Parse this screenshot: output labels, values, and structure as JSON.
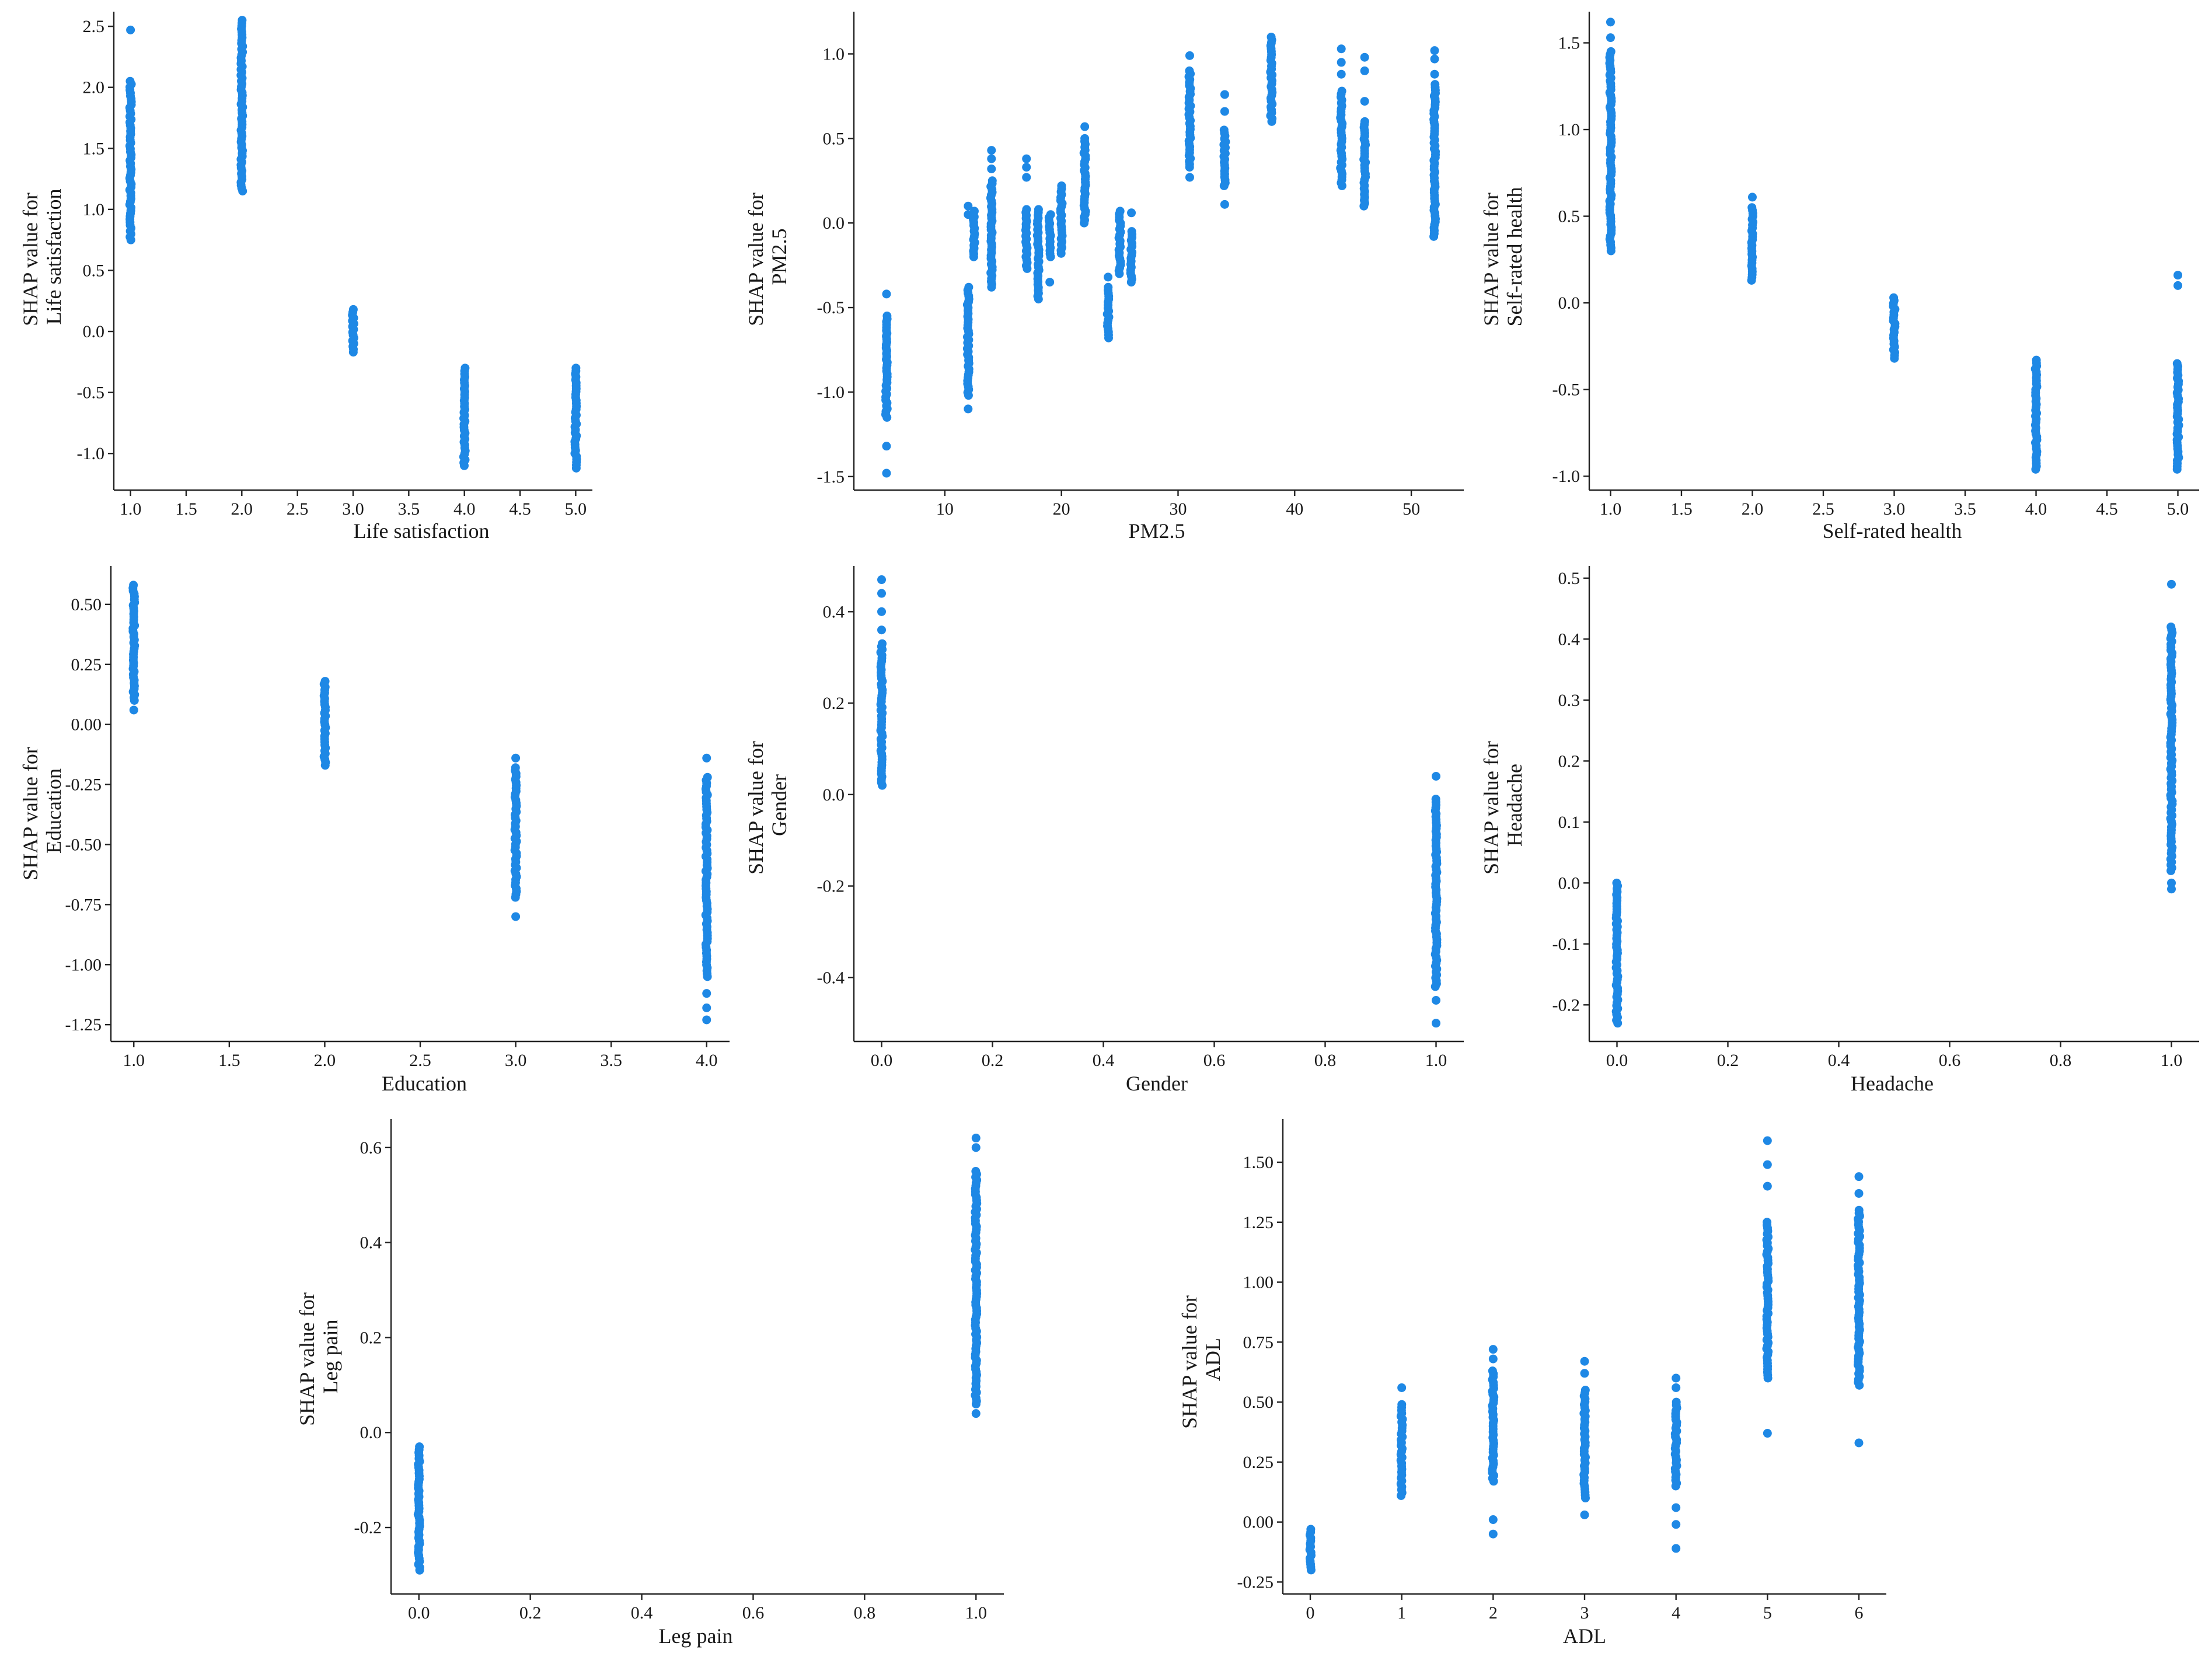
{
  "point_color": "#1e88e5",
  "chart_data": [
    {
      "type": "scatter",
      "xlabel": "Life satisfaction",
      "ylabel_line1": "SHAP value for",
      "ylabel_line2": "Life satisfaction",
      "xlim": [
        0.85,
        5.15
      ],
      "ylim": [
        -1.3,
        2.62
      ],
      "xticks": [
        1.0,
        1.5,
        2.0,
        2.5,
        3.0,
        3.5,
        4.0,
        4.5,
        5.0
      ],
      "xtick_labels": [
        "1.0",
        "1.5",
        "2.0",
        "2.5",
        "3.0",
        "3.5",
        "4.0",
        "4.5",
        "5.0"
      ],
      "yticks": [
        -1.0,
        -0.5,
        0.0,
        0.5,
        1.0,
        1.5,
        2.0,
        2.5
      ],
      "ytick_labels": [
        "-1.0",
        "-0.5",
        "0.0",
        "0.5",
        "1.0",
        "1.5",
        "2.0",
        "2.5"
      ],
      "clusters": [
        {
          "x": 1,
          "min": 0.75,
          "max": 2.05,
          "outliers": [
            2.47
          ]
        },
        {
          "x": 2,
          "min": 1.15,
          "max": 2.55,
          "outliers": []
        },
        {
          "x": 3,
          "min": -0.17,
          "max": 0.18,
          "outliers": []
        },
        {
          "x": 4,
          "min": -1.1,
          "max": -0.3,
          "outliers": []
        },
        {
          "x": 5,
          "min": -1.12,
          "max": -0.3,
          "outliers": []
        }
      ]
    },
    {
      "type": "scatter",
      "xlabel": "PM2.5",
      "ylabel_line1": "SHAP value for",
      "ylabel_line2": "PM2.5",
      "xlim": [
        2.2,
        54.5
      ],
      "ylim": [
        -1.58,
        1.25
      ],
      "xticks": [
        10,
        20,
        30,
        40,
        50
      ],
      "xtick_labels": [
        "10",
        "20",
        "30",
        "40",
        "50"
      ],
      "yticks": [
        -1.5,
        -1.0,
        -0.5,
        0.0,
        0.5,
        1.0
      ],
      "ytick_labels": [
        "-1.5",
        "-1.0",
        "-0.5",
        "0.0",
        "0.5",
        "1.0"
      ],
      "clusters": [
        {
          "x": 5,
          "min": -1.15,
          "max": -0.55,
          "outliers": [
            -1.48,
            -1.32,
            -0.42
          ]
        },
        {
          "x": 12,
          "min": -1.02,
          "max": -0.38,
          "outliers": [
            -1.1,
            0.1,
            0.05
          ]
        },
        {
          "x": 12.5,
          "min": -0.2,
          "max": 0.07,
          "outliers": []
        },
        {
          "x": 14,
          "min": -0.38,
          "max": 0.25,
          "outliers": [
            0.32,
            0.38,
            0.43
          ]
        },
        {
          "x": 17,
          "min": -0.27,
          "max": 0.08,
          "outliers": [
            0.27,
            0.33,
            0.38
          ]
        },
        {
          "x": 18,
          "min": -0.45,
          "max": 0.08,
          "outliers": []
        },
        {
          "x": 19,
          "min": -0.2,
          "max": 0.05,
          "outliers": [
            -0.35
          ]
        },
        {
          "x": 20,
          "min": -0.18,
          "max": 0.22,
          "outliers": []
        },
        {
          "x": 22,
          "min": 0.0,
          "max": 0.5,
          "outliers": [
            0.57
          ]
        },
        {
          "x": 24,
          "min": -0.68,
          "max": -0.38,
          "outliers": [
            -0.32
          ]
        },
        {
          "x": 25,
          "min": -0.3,
          "max": 0.07,
          "outliers": []
        },
        {
          "x": 26,
          "min": -0.35,
          "max": -0.05,
          "outliers": [
            0.06
          ]
        },
        {
          "x": 31,
          "min": 0.33,
          "max": 0.9,
          "outliers": [
            0.27,
            0.99
          ]
        },
        {
          "x": 34,
          "min": 0.22,
          "max": 0.55,
          "outliers": [
            0.11,
            0.66,
            0.76
          ]
        },
        {
          "x": 38,
          "min": 0.6,
          "max": 1.1,
          "outliers": []
        },
        {
          "x": 44,
          "min": 0.22,
          "max": 0.78,
          "outliers": [
            0.88,
            0.95,
            1.03
          ]
        },
        {
          "x": 46,
          "min": 0.1,
          "max": 0.6,
          "outliers": [
            0.72,
            0.9,
            0.98
          ]
        },
        {
          "x": 52,
          "min": -0.08,
          "max": 0.82,
          "outliers": [
            0.88,
            0.97,
            1.02
          ]
        }
      ]
    },
    {
      "type": "scatter",
      "xlabel": "Self-rated health",
      "ylabel_line1": "SHAP value for",
      "ylabel_line2": "Self-rated health",
      "xlim": [
        0.85,
        5.15
      ],
      "ylim": [
        -1.08,
        1.68
      ],
      "xticks": [
        1.0,
        1.5,
        2.0,
        2.5,
        3.0,
        3.5,
        4.0,
        4.5,
        5.0
      ],
      "xtick_labels": [
        "1.0",
        "1.5",
        "2.0",
        "2.5",
        "3.0",
        "3.5",
        "4.0",
        "4.5",
        "5.0"
      ],
      "yticks": [
        -1.0,
        -0.5,
        0.0,
        0.5,
        1.0,
        1.5
      ],
      "ytick_labels": [
        "-1.0",
        "-0.5",
        "0.0",
        "0.5",
        "1.0",
        "1.5"
      ],
      "clusters": [
        {
          "x": 1,
          "min": 0.3,
          "max": 1.45,
          "outliers": [
            1.53,
            1.62
          ]
        },
        {
          "x": 2,
          "min": 0.13,
          "max": 0.55,
          "outliers": [
            0.61
          ]
        },
        {
          "x": 3,
          "min": -0.32,
          "max": 0.03,
          "outliers": []
        },
        {
          "x": 4,
          "min": -0.96,
          "max": -0.33,
          "outliers": []
        },
        {
          "x": 5,
          "min": -0.96,
          "max": -0.35,
          "outliers": [
            0.1,
            0.16
          ]
        }
      ]
    },
    {
      "type": "scatter",
      "xlabel": "Education",
      "ylabel_line1": "SHAP value for",
      "ylabel_line2": "Education",
      "xlim": [
        0.88,
        4.12
      ],
      "ylim": [
        -1.32,
        0.66
      ],
      "xticks": [
        1.0,
        1.5,
        2.0,
        2.5,
        3.0,
        3.5,
        4.0
      ],
      "xtick_labels": [
        "1.0",
        "1.5",
        "2.0",
        "2.5",
        "3.0",
        "3.5",
        "4.0"
      ],
      "yticks": [
        -1.25,
        -1.0,
        -0.75,
        -0.5,
        -0.25,
        0.0,
        0.25,
        0.5
      ],
      "ytick_labels": [
        "-1.25",
        "-1.00",
        "-0.75",
        "-0.50",
        "-0.25",
        "0.00",
        "0.25",
        "0.50"
      ],
      "clusters": [
        {
          "x": 1,
          "min": 0.1,
          "max": 0.58,
          "outliers": [
            0.06
          ]
        },
        {
          "x": 2,
          "min": -0.17,
          "max": 0.18,
          "outliers": []
        },
        {
          "x": 3,
          "min": -0.72,
          "max": -0.18,
          "outliers": [
            -0.14,
            -0.8
          ]
        },
        {
          "x": 4,
          "min": -1.05,
          "max": -0.22,
          "outliers": [
            -0.14,
            -1.12,
            -1.18,
            -1.23
          ]
        }
      ]
    },
    {
      "type": "scatter",
      "xlabel": "Gender",
      "ylabel_line1": "SHAP value for",
      "ylabel_line2": "Gender",
      "xlim": [
        -0.05,
        1.05
      ],
      "ylim": [
        -0.54,
        0.5
      ],
      "xticks": [
        0.0,
        0.2,
        0.4,
        0.6,
        0.8,
        1.0
      ],
      "xtick_labels": [
        "0.0",
        "0.2",
        "0.4",
        "0.6",
        "0.8",
        "1.0"
      ],
      "yticks": [
        -0.4,
        -0.2,
        0.0,
        0.2,
        0.4
      ],
      "ytick_labels": [
        "-0.4",
        "-0.2",
        "0.0",
        "0.2",
        "0.4"
      ],
      "clusters": [
        {
          "x": 0,
          "min": 0.02,
          "max": 0.33,
          "outliers": [
            0.36,
            0.4,
            0.44,
            0.47
          ]
        },
        {
          "x": 1,
          "min": -0.42,
          "max": -0.01,
          "outliers": [
            0.04,
            -0.45,
            -0.5
          ]
        }
      ]
    },
    {
      "type": "scatter",
      "xlabel": "Headache",
      "ylabel_line1": "SHAP value for",
      "ylabel_line2": "Headache",
      "xlim": [
        -0.05,
        1.05
      ],
      "ylim": [
        -0.26,
        0.52
      ],
      "xticks": [
        0.0,
        0.2,
        0.4,
        0.6,
        0.8,
        1.0
      ],
      "xtick_labels": [
        "0.0",
        "0.2",
        "0.4",
        "0.6",
        "0.8",
        "1.0"
      ],
      "yticks": [
        -0.2,
        -0.1,
        0.0,
        0.1,
        0.2,
        0.3,
        0.4,
        0.5
      ],
      "ytick_labels": [
        "-0.2",
        "-0.1",
        "0.0",
        "0.1",
        "0.2",
        "0.3",
        "0.4",
        "0.5"
      ],
      "clusters": [
        {
          "x": 0,
          "min": -0.23,
          "max": 0.0,
          "outliers": []
        },
        {
          "x": 1,
          "min": 0.02,
          "max": 0.42,
          "outliers": [
            -0.01,
            0.0,
            0.49
          ]
        }
      ]
    },
    {
      "type": "scatter",
      "xlabel": "Leg pain",
      "ylabel_line1": "SHAP value for",
      "ylabel_line2": "Leg pain",
      "xlim": [
        -0.05,
        1.05
      ],
      "ylim": [
        -0.34,
        0.66
      ],
      "xticks": [
        0.0,
        0.2,
        0.4,
        0.6,
        0.8,
        1.0
      ],
      "xtick_labels": [
        "0.0",
        "0.2",
        "0.4",
        "0.6",
        "0.8",
        "1.0"
      ],
      "yticks": [
        -0.2,
        0.0,
        0.2,
        0.4,
        0.6
      ],
      "ytick_labels": [
        "-0.2",
        "0.0",
        "0.2",
        "0.4",
        "0.6"
      ],
      "clusters": [
        {
          "x": 0,
          "min": -0.29,
          "max": -0.03,
          "outliers": []
        },
        {
          "x": 1,
          "min": 0.06,
          "max": 0.55,
          "outliers": [
            0.04,
            0.6,
            0.62
          ]
        }
      ]
    },
    {
      "type": "scatter",
      "xlabel": "ADL",
      "ylabel_line1": "SHAP value for",
      "ylabel_line2": "ADL",
      "xlim": [
        -0.3,
        6.3
      ],
      "ylim": [
        -0.3,
        1.68
      ],
      "xticks": [
        0,
        1,
        2,
        3,
        4,
        5,
        6
      ],
      "xtick_labels": [
        "0",
        "1",
        "2",
        "3",
        "4",
        "5",
        "6"
      ],
      "yticks": [
        -0.25,
        0.0,
        0.25,
        0.5,
        0.75,
        1.0,
        1.25,
        1.5
      ],
      "ytick_labels": [
        "-0.25",
        "0.00",
        "0.25",
        "0.50",
        "0.75",
        "1.00",
        "1.25",
        "1.50"
      ],
      "clusters": [
        {
          "x": 0,
          "min": -0.2,
          "max": -0.03,
          "outliers": []
        },
        {
          "x": 1,
          "min": 0.11,
          "max": 0.49,
          "outliers": [
            0.56
          ]
        },
        {
          "x": 2,
          "min": 0.17,
          "max": 0.63,
          "outliers": [
            0.72,
            0.68,
            0.01,
            -0.05
          ]
        },
        {
          "x": 3,
          "min": 0.1,
          "max": 0.55,
          "outliers": [
            0.03,
            0.62,
            0.67
          ]
        },
        {
          "x": 4,
          "min": 0.15,
          "max": 0.5,
          "outliers": [
            0.6,
            0.56,
            0.06,
            -0.01,
            -0.11
          ]
        },
        {
          "x": 5,
          "min": 0.6,
          "max": 1.25,
          "outliers": [
            0.37,
            1.4,
            1.49,
            1.59
          ]
        },
        {
          "x": 6,
          "min": 0.57,
          "max": 1.3,
          "outliers": [
            0.33,
            1.37,
            1.44
          ]
        }
      ]
    }
  ]
}
